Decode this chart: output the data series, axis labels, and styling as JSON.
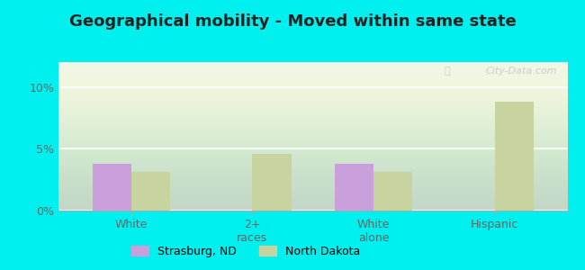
{
  "title": "Geographical mobility - Moved within same state",
  "categories": [
    "White",
    "2+\nraces",
    "White\nalone",
    "Hispanic"
  ],
  "strasburg_values": [
    3.8,
    0,
    3.8,
    0
  ],
  "northdakota_values": [
    3.1,
    4.6,
    3.1,
    8.8
  ],
  "strasburg_color": "#c9a0dc",
  "northdakota_color": "#c8d4a0",
  "background_outer": "#00EFEF",
  "background_inner": "#f0f5e8",
  "ylim": [
    0,
    12
  ],
  "yticks": [
    0,
    5,
    10
  ],
  "yticklabels": [
    "0%",
    "5%",
    "10%"
  ],
  "bar_width": 0.32,
  "legend_labels": [
    "Strasburg, ND",
    "North Dakota"
  ],
  "title_fontsize": 13,
  "tick_fontsize": 9,
  "legend_fontsize": 9
}
